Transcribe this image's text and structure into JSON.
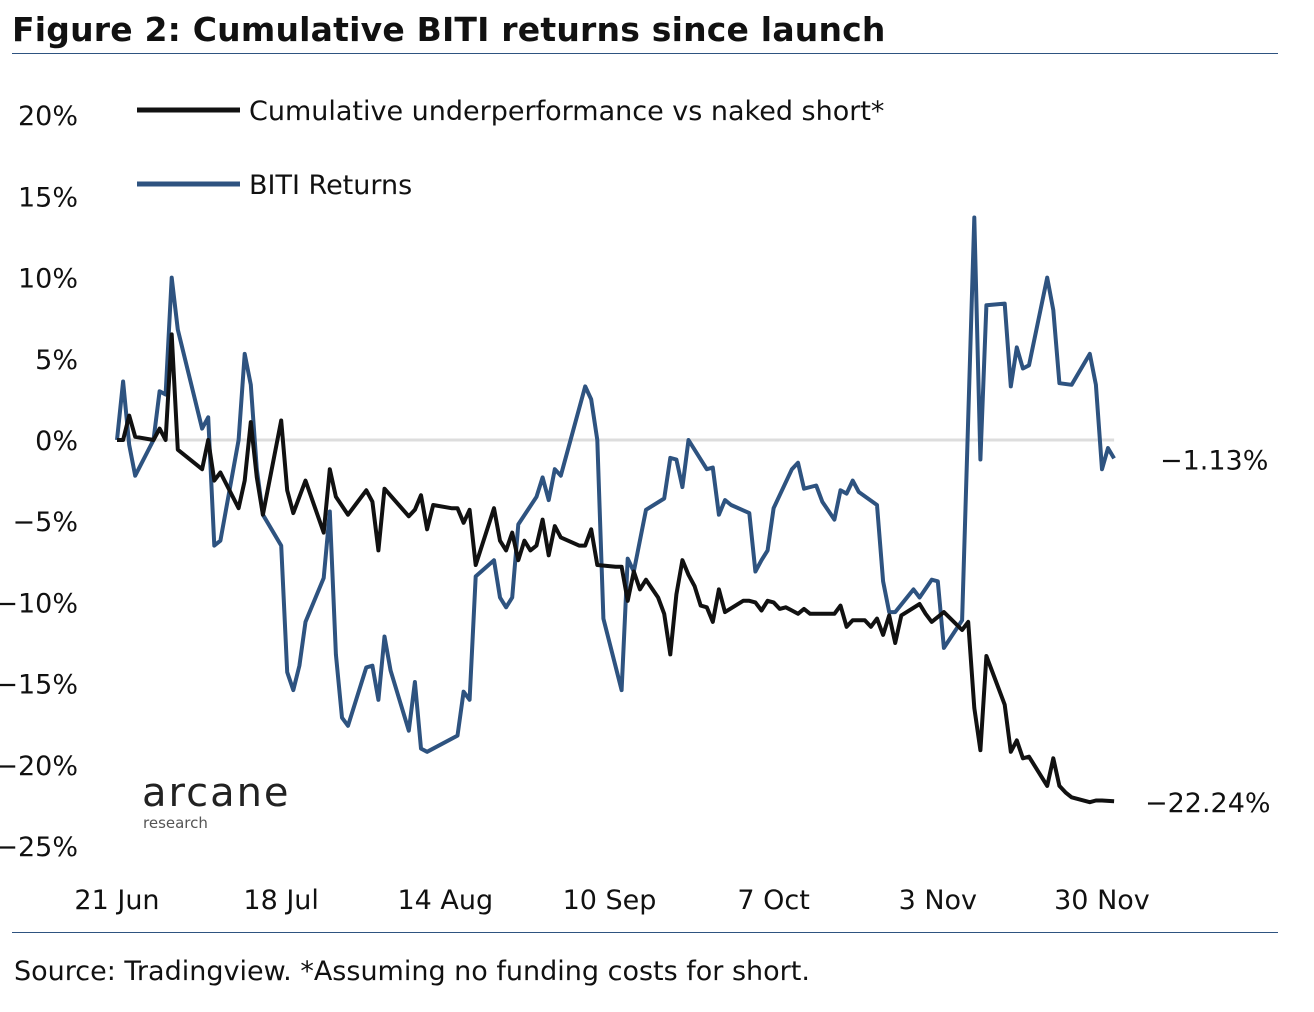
{
  "title": "Figure 2: Cumulative BITI returns since launch",
  "source": "Source: Tradingview. *Assuming no funding costs for short.",
  "logo": {
    "main": "arcane",
    "sub": "research"
  },
  "chart_data": {
    "type": "line",
    "title": "Figure 2: Cumulative BITI returns since launch",
    "xlabel": "",
    "ylabel": "",
    "ylim": [
      -25,
      20
    ],
    "xlim": [
      "2022-06-21",
      "2022-12-02"
    ],
    "grid": "zero line only",
    "legend_placement": "top-left",
    "y_ticks": [
      {
        "value": 20,
        "label": "20%"
      },
      {
        "value": 15,
        "label": "15%"
      },
      {
        "value": 10,
        "label": "10%"
      },
      {
        "value": 5,
        "label": "5%"
      },
      {
        "value": 0,
        "label": "0%"
      },
      {
        "value": -5,
        "label": "-5%"
      },
      {
        "value": -10,
        "label": "-10%"
      },
      {
        "value": -15,
        "label": "-15%"
      },
      {
        "value": -20,
        "label": "-20%"
      },
      {
        "value": -25,
        "label": "-25%"
      }
    ],
    "x_ticks": [
      {
        "date": "2022-06-21",
        "label": "21 Jun"
      },
      {
        "date": "2022-07-18",
        "label": "18 Jul"
      },
      {
        "date": "2022-08-14",
        "label": "14 Aug"
      },
      {
        "date": "2022-09-10",
        "label": "10 Sep"
      },
      {
        "date": "2022-10-07",
        "label": "7 Oct"
      },
      {
        "date": "2022-11-03",
        "label": "3 Nov"
      },
      {
        "date": "2022-11-30",
        "label": "30 Nov"
      }
    ],
    "series": [
      {
        "name": "Cumulative underperformance vs naked short*",
        "color": "#111111",
        "end_label": "-22.24%",
        "points": [
          [
            "2022-06-21",
            0
          ],
          [
            "2022-06-22",
            0
          ],
          [
            "2022-06-23",
            1.5
          ],
          [
            "2022-06-24",
            0.2
          ],
          [
            "2022-06-27",
            0
          ],
          [
            "2022-06-28",
            0.7
          ],
          [
            "2022-06-29",
            0
          ],
          [
            "2022-06-30",
            6.5
          ],
          [
            "2022-07-01",
            -0.6
          ],
          [
            "2022-07-05",
            -1.8
          ],
          [
            "2022-07-06",
            0
          ],
          [
            "2022-07-07",
            -2.5
          ],
          [
            "2022-07-08",
            -2.0
          ],
          [
            "2022-07-11",
            -4.2
          ],
          [
            "2022-07-12",
            -2.5
          ],
          [
            "2022-07-13",
            1.1
          ],
          [
            "2022-07-14",
            -2.3
          ],
          [
            "2022-07-15",
            -4.6
          ],
          [
            "2022-07-18",
            1.2
          ],
          [
            "2022-07-19",
            -3.1
          ],
          [
            "2022-07-20",
            -4.5
          ],
          [
            "2022-07-22",
            -2.5
          ],
          [
            "2022-07-25",
            -5.7
          ],
          [
            "2022-07-26",
            -1.8
          ],
          [
            "2022-07-27",
            -3.5
          ],
          [
            "2022-07-29",
            -4.6
          ],
          [
            "2022-08-01",
            -3.1
          ],
          [
            "2022-08-02",
            -3.8
          ],
          [
            "2022-08-03",
            -6.8
          ],
          [
            "2022-08-04",
            -3.0
          ],
          [
            "2022-08-08",
            -4.7
          ],
          [
            "2022-08-09",
            -4.3
          ],
          [
            "2022-08-10",
            -3.4
          ],
          [
            "2022-08-11",
            -5.5
          ],
          [
            "2022-08-12",
            -4.0
          ],
          [
            "2022-08-15",
            -4.2
          ],
          [
            "2022-08-16",
            -4.2
          ],
          [
            "2022-08-17",
            -5.1
          ],
          [
            "2022-08-18",
            -4.3
          ],
          [
            "2022-08-19",
            -7.7
          ],
          [
            "2022-08-22",
            -4.2
          ],
          [
            "2022-08-23",
            -6.2
          ],
          [
            "2022-08-24",
            -6.8
          ],
          [
            "2022-08-25",
            -5.7
          ],
          [
            "2022-08-26",
            -7.4
          ],
          [
            "2022-08-27",
            -6.2
          ],
          [
            "2022-08-28",
            -6.8
          ],
          [
            "2022-08-29",
            -6.5
          ],
          [
            "2022-08-30",
            -4.9
          ],
          [
            "2022-08-31",
            -7.1
          ],
          [
            "2022-09-01",
            -5.3
          ],
          [
            "2022-09-02",
            -6.0
          ],
          [
            "2022-09-05",
            -6.5
          ],
          [
            "2022-09-06",
            -6.5
          ],
          [
            "2022-09-07",
            -5.5
          ],
          [
            "2022-09-08",
            -7.7
          ],
          [
            "2022-09-11",
            -7.8
          ],
          [
            "2022-09-12",
            -7.8
          ],
          [
            "2022-09-13",
            -9.9
          ],
          [
            "2022-09-14",
            -8.1
          ],
          [
            "2022-09-15",
            -9.2
          ],
          [
            "2022-09-16",
            -8.6
          ],
          [
            "2022-09-18",
            -9.7
          ],
          [
            "2022-09-19",
            -10.7
          ],
          [
            "2022-09-20",
            -13.2
          ],
          [
            "2022-09-21",
            -9.5
          ],
          [
            "2022-09-22",
            -7.4
          ],
          [
            "2022-09-23",
            -8.3
          ],
          [
            "2022-09-24",
            -9.0
          ],
          [
            "2022-09-25",
            -10.2
          ],
          [
            "2022-09-26",
            -10.3
          ],
          [
            "2022-09-27",
            -11.2
          ],
          [
            "2022-09-28",
            -9.2
          ],
          [
            "2022-09-29",
            -10.6
          ],
          [
            "2022-10-02",
            -9.9
          ],
          [
            "2022-10-03",
            -9.9
          ],
          [
            "2022-10-04",
            -10.0
          ],
          [
            "2022-10-05",
            -10.5
          ],
          [
            "2022-10-06",
            -9.9
          ],
          [
            "2022-10-07",
            -10.0
          ],
          [
            "2022-10-08",
            -10.4
          ],
          [
            "2022-10-09",
            -10.3
          ],
          [
            "2022-10-10",
            -10.5
          ],
          [
            "2022-10-11",
            -10.7
          ],
          [
            "2022-10-12",
            -10.4
          ],
          [
            "2022-10-13",
            -10.7
          ],
          [
            "2022-10-14",
            -10.7
          ],
          [
            "2022-10-15",
            -10.7
          ],
          [
            "2022-10-17",
            -10.7
          ],
          [
            "2022-10-18",
            -10.2
          ],
          [
            "2022-10-19",
            -11.5
          ],
          [
            "2022-10-20",
            -11.1
          ],
          [
            "2022-10-22",
            -11.1
          ],
          [
            "2022-10-23",
            -11.5
          ],
          [
            "2022-10-24",
            -11.0
          ],
          [
            "2022-10-25",
            -12.0
          ],
          [
            "2022-10-26",
            -10.8
          ],
          [
            "2022-10-27",
            -12.5
          ],
          [
            "2022-10-28",
            -10.8
          ],
          [
            "2022-10-31",
            -10.1
          ],
          [
            "2022-11-01",
            -10.7
          ],
          [
            "2022-11-02",
            -11.2
          ],
          [
            "2022-11-04",
            -10.6
          ],
          [
            "2022-11-07",
            -11.7
          ],
          [
            "2022-11-08",
            -11.2
          ],
          [
            "2022-11-09",
            -16.5
          ],
          [
            "2022-11-10",
            -19.1
          ],
          [
            "2022-11-11",
            -13.3
          ],
          [
            "2022-11-14",
            -16.3
          ],
          [
            "2022-11-15",
            -19.2
          ],
          [
            "2022-11-16",
            -18.5
          ],
          [
            "2022-11-17",
            -19.6
          ],
          [
            "2022-11-18",
            -19.5
          ],
          [
            "2022-11-21",
            -21.3
          ],
          [
            "2022-11-22",
            -19.6
          ],
          [
            "2022-11-23",
            -21.3
          ],
          [
            "2022-11-24",
            -21.7
          ],
          [
            "2022-11-25",
            -22.0
          ],
          [
            "2022-11-28",
            -22.3
          ],
          [
            "2022-11-29",
            -22.2
          ],
          [
            "2022-11-30",
            -22.2
          ],
          [
            "2022-12-02",
            -22.24
          ]
        ]
      },
      {
        "name": "BITI Returns",
        "color": "#2e5380",
        "end_label": "-1.13%",
        "points": [
          [
            "2022-06-21",
            0
          ],
          [
            "2022-06-22",
            3.6
          ],
          [
            "2022-06-23",
            -0.3
          ],
          [
            "2022-06-24",
            -2.2
          ],
          [
            "2022-06-27",
            0
          ],
          [
            "2022-06-28",
            3.0
          ],
          [
            "2022-06-29",
            2.8
          ],
          [
            "2022-06-30",
            10.0
          ],
          [
            "2022-07-01",
            6.8
          ],
          [
            "2022-07-05",
            0.7
          ],
          [
            "2022-07-06",
            1.4
          ],
          [
            "2022-07-07",
            -6.5
          ],
          [
            "2022-07-08",
            -6.2
          ],
          [
            "2022-07-11",
            0
          ],
          [
            "2022-07-12",
            5.3
          ],
          [
            "2022-07-13",
            3.4
          ],
          [
            "2022-07-14",
            -1.8
          ],
          [
            "2022-07-15",
            -4.6
          ],
          [
            "2022-07-18",
            -6.5
          ],
          [
            "2022-07-19",
            -14.3
          ],
          [
            "2022-07-20",
            -15.4
          ],
          [
            "2022-07-21",
            -13.9
          ],
          [
            "2022-07-22",
            -11.2
          ],
          [
            "2022-07-25",
            -8.5
          ],
          [
            "2022-07-26",
            -4.4
          ],
          [
            "2022-07-27",
            -13.2
          ],
          [
            "2022-07-28",
            -17.1
          ],
          [
            "2022-07-29",
            -17.6
          ],
          [
            "2022-08-01",
            -14.0
          ],
          [
            "2022-08-02",
            -13.9
          ],
          [
            "2022-08-03",
            -16.0
          ],
          [
            "2022-08-04",
            -12.1
          ],
          [
            "2022-08-05",
            -14.2
          ],
          [
            "2022-08-08",
            -17.9
          ],
          [
            "2022-08-09",
            -14.9
          ],
          [
            "2022-08-10",
            -19.0
          ],
          [
            "2022-08-11",
            -19.2
          ],
          [
            "2022-08-16",
            -18.2
          ],
          [
            "2022-08-17",
            -15.5
          ],
          [
            "2022-08-18",
            -16.0
          ],
          [
            "2022-08-19",
            -8.4
          ],
          [
            "2022-08-22",
            -7.4
          ],
          [
            "2022-08-23",
            -9.7
          ],
          [
            "2022-08-24",
            -10.3
          ],
          [
            "2022-08-25",
            -9.7
          ],
          [
            "2022-08-26",
            -5.2
          ],
          [
            "2022-08-29",
            -3.5
          ],
          [
            "2022-08-30",
            -2.3
          ],
          [
            "2022-08-31",
            -3.7
          ],
          [
            "2022-09-01",
            -1.8
          ],
          [
            "2022-09-02",
            -2.2
          ],
          [
            "2022-09-06",
            3.3
          ],
          [
            "2022-09-07",
            2.5
          ],
          [
            "2022-09-08",
            0
          ],
          [
            "2022-09-09",
            -11.0
          ],
          [
            "2022-09-12",
            -15.4
          ],
          [
            "2022-09-13",
            -7.3
          ],
          [
            "2022-09-14",
            -8.1
          ],
          [
            "2022-09-16",
            -4.3
          ],
          [
            "2022-09-19",
            -3.6
          ],
          [
            "2022-09-20",
            -1.1
          ],
          [
            "2022-09-21",
            -1.2
          ],
          [
            "2022-09-22",
            -2.9
          ],
          [
            "2022-09-23",
            0
          ],
          [
            "2022-09-26",
            -1.8
          ],
          [
            "2022-09-27",
            -1.7
          ],
          [
            "2022-09-28",
            -4.6
          ],
          [
            "2022-09-29",
            -3.7
          ],
          [
            "2022-09-30",
            -4.0
          ],
          [
            "2022-10-03",
            -4.5
          ],
          [
            "2022-10-04",
            -8.1
          ],
          [
            "2022-10-05",
            -7.4
          ],
          [
            "2022-10-06",
            -6.8
          ],
          [
            "2022-10-07",
            -4.2
          ],
          [
            "2022-10-10",
            -1.8
          ],
          [
            "2022-10-11",
            -1.4
          ],
          [
            "2022-10-12",
            -3.0
          ],
          [
            "2022-10-14",
            -2.8
          ],
          [
            "2022-10-15",
            -3.8
          ],
          [
            "2022-10-17",
            -4.9
          ],
          [
            "2022-10-18",
            -3.1
          ],
          [
            "2022-10-19",
            -3.3
          ],
          [
            "2022-10-20",
            -2.5
          ],
          [
            "2022-10-21",
            -3.2
          ],
          [
            "2022-10-24",
            -4.0
          ],
          [
            "2022-10-25",
            -8.7
          ],
          [
            "2022-10-26",
            -10.6
          ],
          [
            "2022-10-27",
            -10.6
          ],
          [
            "2022-10-30",
            -9.2
          ],
          [
            "2022-10-31",
            -9.7
          ],
          [
            "2022-11-02",
            -8.6
          ],
          [
            "2022-11-03",
            -8.7
          ],
          [
            "2022-11-04",
            -12.8
          ],
          [
            "2022-11-07",
            -11.1
          ],
          [
            "2022-11-09",
            13.7
          ],
          [
            "2022-11-10",
            -1.2
          ],
          [
            "2022-11-11",
            8.3
          ],
          [
            "2022-11-14",
            8.4
          ],
          [
            "2022-11-15",
            3.3
          ],
          [
            "2022-11-16",
            5.7
          ],
          [
            "2022-11-17",
            4.4
          ],
          [
            "2022-11-18",
            4.6
          ],
          [
            "2022-11-21",
            10.0
          ],
          [
            "2022-11-22",
            8.0
          ],
          [
            "2022-11-23",
            3.5
          ],
          [
            "2022-11-25",
            3.4
          ],
          [
            "2022-11-28",
            5.3
          ],
          [
            "2022-11-29",
            3.4
          ],
          [
            "2022-11-30",
            -1.8
          ],
          [
            "2022-12-01",
            -0.5
          ],
          [
            "2022-12-02",
            -1.13
          ]
        ]
      }
    ]
  }
}
